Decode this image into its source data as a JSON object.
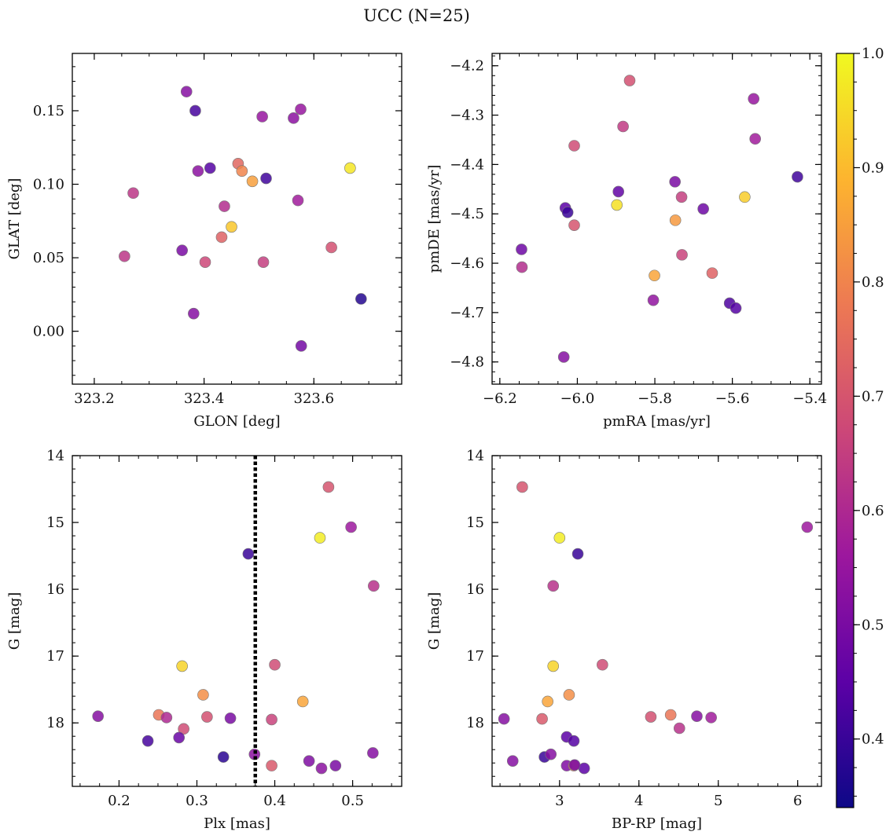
{
  "figure": {
    "title": "UCC (N=25)"
  },
  "colorbar": {
    "range": [
      0.34,
      1.0
    ],
    "ticks": [
      0.4,
      0.5,
      0.6,
      0.7,
      0.8,
      0.9,
      1.0
    ],
    "tick_labels": [
      "0.4",
      "0.5",
      "0.6",
      "0.7",
      "0.8",
      "0.9",
      "1.0"
    ],
    "colormap": "plasma",
    "colors": [
      "#0d0887",
      "#5c01a6",
      "#9c179e",
      "#cc4778",
      "#ed7953",
      "#fdb42f",
      "#f0f921"
    ]
  },
  "chart_data": [
    {
      "id": "glon_glat",
      "type": "scatter",
      "xlabel": "GLON [deg]",
      "ylabel": "GLAT [deg]",
      "xlim": [
        323.16,
        323.76
      ],
      "ylim": [
        -0.036,
        0.189
      ],
      "xticks": [
        323.2,
        323.4,
        323.6
      ],
      "xtick_labels": [
        "323.2",
        "323.4",
        "323.6"
      ],
      "yticks": [
        0.0,
        0.05,
        0.1,
        0.15
      ],
      "ytick_labels": [
        "0.00",
        "0.05",
        "0.10",
        "0.15"
      ],
      "points": [
        {
          "x": 323.368,
          "y": 0.163,
          "c": 0.52
        },
        {
          "x": 323.384,
          "y": 0.15,
          "c": 0.42
        },
        {
          "x": 323.506,
          "y": 0.146,
          "c": 0.55
        },
        {
          "x": 323.563,
          "y": 0.145,
          "c": 0.53
        },
        {
          "x": 323.576,
          "y": 0.151,
          "c": 0.55
        },
        {
          "x": 323.389,
          "y": 0.109,
          "c": 0.53
        },
        {
          "x": 323.411,
          "y": 0.111,
          "c": 0.44
        },
        {
          "x": 323.462,
          "y": 0.114,
          "c": 0.74
        },
        {
          "x": 323.469,
          "y": 0.109,
          "c": 0.8
        },
        {
          "x": 323.488,
          "y": 0.102,
          "c": 0.85
        },
        {
          "x": 323.513,
          "y": 0.104,
          "c": 0.41
        },
        {
          "x": 323.666,
          "y": 0.111,
          "c": 0.97
        },
        {
          "x": 323.271,
          "y": 0.094,
          "c": 0.63
        },
        {
          "x": 323.437,
          "y": 0.085,
          "c": 0.61
        },
        {
          "x": 323.571,
          "y": 0.089,
          "c": 0.57
        },
        {
          "x": 323.45,
          "y": 0.071,
          "c": 0.92
        },
        {
          "x": 323.432,
          "y": 0.064,
          "c": 0.73
        },
        {
          "x": 323.36,
          "y": 0.055,
          "c": 0.5
        },
        {
          "x": 323.255,
          "y": 0.051,
          "c": 0.63
        },
        {
          "x": 323.402,
          "y": 0.047,
          "c": 0.67
        },
        {
          "x": 323.508,
          "y": 0.047,
          "c": 0.65
        },
        {
          "x": 323.632,
          "y": 0.057,
          "c": 0.69
        },
        {
          "x": 323.686,
          "y": 0.022,
          "c": 0.37
        },
        {
          "x": 323.381,
          "y": 0.012,
          "c": 0.52
        },
        {
          "x": 323.577,
          "y": -0.01,
          "c": 0.49
        }
      ]
    },
    {
      "id": "pm",
      "type": "scatter",
      "xlabel": "pmRA [mas/yr]",
      "ylabel": "pmDE [mas/yr]",
      "xlim": [
        -6.22,
        -5.37
      ],
      "ylim": [
        -4.845,
        -4.175
      ],
      "xticks": [
        -6.2,
        -6.0,
        -5.8,
        -5.6,
        -5.4
      ],
      "xtick_labels": [
        "−6.2",
        "−6.0",
        "−5.8",
        "−5.6",
        "−5.4"
      ],
      "yticks": [
        -4.8,
        -4.7,
        -4.6,
        -4.5,
        -4.4,
        -4.3,
        -4.2
      ],
      "ytick_labels": [
        "−4.8",
        "−4.7",
        "−4.6",
        "−4.5",
        "−4.4",
        "−4.3",
        "−4.2"
      ],
      "points": [
        {
          "x": -5.865,
          "y": -4.23,
          "c": 0.69
        },
        {
          "x": -5.545,
          "y": -4.267,
          "c": 0.55
        },
        {
          "x": -5.882,
          "y": -4.323,
          "c": 0.64
        },
        {
          "x": -5.541,
          "y": -4.348,
          "c": 0.57
        },
        {
          "x": -6.008,
          "y": -4.362,
          "c": 0.68
        },
        {
          "x": -5.432,
          "y": -4.425,
          "c": 0.41
        },
        {
          "x": -5.748,
          "y": -4.435,
          "c": 0.5
        },
        {
          "x": -5.894,
          "y": -4.455,
          "c": 0.46
        },
        {
          "x": -5.731,
          "y": -4.466,
          "c": 0.65
        },
        {
          "x": -5.568,
          "y": -4.466,
          "c": 0.93
        },
        {
          "x": -5.898,
          "y": -4.482,
          "c": 0.96
        },
        {
          "x": -6.031,
          "y": -4.488,
          "c": 0.45
        },
        {
          "x": -6.025,
          "y": -4.497,
          "c": 0.4
        },
        {
          "x": -5.675,
          "y": -4.49,
          "c": 0.48
        },
        {
          "x": -6.008,
          "y": -4.523,
          "c": 0.7
        },
        {
          "x": -5.747,
          "y": -4.513,
          "c": 0.84
        },
        {
          "x": -6.144,
          "y": -4.572,
          "c": 0.48
        },
        {
          "x": -5.73,
          "y": -4.583,
          "c": 0.66
        },
        {
          "x": -6.143,
          "y": -4.608,
          "c": 0.61
        },
        {
          "x": -5.801,
          "y": -4.625,
          "c": 0.86
        },
        {
          "x": -5.652,
          "y": -4.62,
          "c": 0.73
        },
        {
          "x": -5.804,
          "y": -4.675,
          "c": 0.54
        },
        {
          "x": -5.607,
          "y": -4.681,
          "c": 0.43
        },
        {
          "x": -5.591,
          "y": -4.691,
          "c": 0.44
        },
        {
          "x": -6.035,
          "y": -4.79,
          "c": 0.52
        }
      ]
    },
    {
      "id": "cmd_plx",
      "type": "scatter",
      "xlabel": "Plx [mas]",
      "ylabel": "G [mag]",
      "xlim": [
        0.14,
        0.563
      ],
      "ylim": [
        18.95,
        14.0
      ],
      "xticks": [
        0.2,
        0.3,
        0.4,
        0.5
      ],
      "xtick_labels": [
        "0.2",
        "0.3",
        "0.4",
        "0.5"
      ],
      "yticks": [
        14,
        15,
        16,
        17,
        18
      ],
      "ytick_labels": [
        "14",
        "15",
        "16",
        "17",
        "18"
      ],
      "vline": {
        "x": 0.375,
        "style": "dotted"
      },
      "points": [
        {
          "x": 0.469,
          "y": 14.47,
          "c": 0.7
        },
        {
          "x": 0.498,
          "y": 15.07,
          "c": 0.56
        },
        {
          "x": 0.458,
          "y": 15.23,
          "c": 0.98
        },
        {
          "x": 0.366,
          "y": 15.47,
          "c": 0.4
        },
        {
          "x": 0.527,
          "y": 15.95,
          "c": 0.62
        },
        {
          "x": 0.281,
          "y": 17.15,
          "c": 0.94
        },
        {
          "x": 0.4,
          "y": 17.13,
          "c": 0.68
        },
        {
          "x": 0.308,
          "y": 17.58,
          "c": 0.82
        },
        {
          "x": 0.436,
          "y": 17.68,
          "c": 0.86
        },
        {
          "x": 0.173,
          "y": 17.9,
          "c": 0.52
        },
        {
          "x": 0.251,
          "y": 17.88,
          "c": 0.77
        },
        {
          "x": 0.261,
          "y": 17.92,
          "c": 0.6
        },
        {
          "x": 0.313,
          "y": 17.91,
          "c": 0.69
        },
        {
          "x": 0.343,
          "y": 17.93,
          "c": 0.5
        },
        {
          "x": 0.396,
          "y": 17.95,
          "c": 0.66
        },
        {
          "x": 0.283,
          "y": 18.09,
          "c": 0.68
        },
        {
          "x": 0.237,
          "y": 18.27,
          "c": 0.42
        },
        {
          "x": 0.277,
          "y": 18.22,
          "c": 0.47
        },
        {
          "x": 0.334,
          "y": 18.51,
          "c": 0.38
        },
        {
          "x": 0.374,
          "y": 18.47,
          "c": 0.53
        },
        {
          "x": 0.526,
          "y": 18.45,
          "c": 0.52
        },
        {
          "x": 0.444,
          "y": 18.57,
          "c": 0.51
        },
        {
          "x": 0.396,
          "y": 18.64,
          "c": 0.71
        },
        {
          "x": 0.46,
          "y": 18.68,
          "c": 0.53
        },
        {
          "x": 0.478,
          "y": 18.64,
          "c": 0.5
        }
      ]
    },
    {
      "id": "cmd_color",
      "type": "scatter",
      "xlabel": "BP-RP [mag]",
      "ylabel": "G [mag]",
      "xlim": [
        2.15,
        6.3
      ],
      "ylim": [
        18.95,
        14.0
      ],
      "xticks": [
        3,
        4,
        5,
        6
      ],
      "xtick_labels": [
        "3",
        "4",
        "5",
        "6"
      ],
      "yticks": [
        14,
        15,
        16,
        17,
        18
      ],
      "ytick_labels": [
        "14",
        "15",
        "16",
        "17",
        "18"
      ],
      "points": [
        {
          "x": 2.53,
          "y": 14.47,
          "c": 0.7
        },
        {
          "x": 6.12,
          "y": 15.07,
          "c": 0.56
        },
        {
          "x": 3.0,
          "y": 15.23,
          "c": 0.98
        },
        {
          "x": 3.23,
          "y": 15.47,
          "c": 0.4
        },
        {
          "x": 2.92,
          "y": 15.95,
          "c": 0.62
        },
        {
          "x": 2.92,
          "y": 17.15,
          "c": 0.94
        },
        {
          "x": 3.54,
          "y": 17.13,
          "c": 0.68
        },
        {
          "x": 3.12,
          "y": 17.58,
          "c": 0.82
        },
        {
          "x": 2.85,
          "y": 17.68,
          "c": 0.86
        },
        {
          "x": 2.3,
          "y": 17.94,
          "c": 0.52
        },
        {
          "x": 2.78,
          "y": 17.94,
          "c": 0.71
        },
        {
          "x": 4.15,
          "y": 17.91,
          "c": 0.69
        },
        {
          "x": 4.4,
          "y": 17.88,
          "c": 0.77
        },
        {
          "x": 4.73,
          "y": 17.9,
          "c": 0.52
        },
        {
          "x": 4.91,
          "y": 17.92,
          "c": 0.57
        },
        {
          "x": 4.51,
          "y": 18.08,
          "c": 0.62
        },
        {
          "x": 3.09,
          "y": 18.21,
          "c": 0.45
        },
        {
          "x": 3.18,
          "y": 18.27,
          "c": 0.44
        },
        {
          "x": 2.81,
          "y": 18.51,
          "c": 0.4
        },
        {
          "x": 2.89,
          "y": 18.47,
          "c": 0.52
        },
        {
          "x": 2.41,
          "y": 18.57,
          "c": 0.52
        },
        {
          "x": 3.09,
          "y": 18.64,
          "c": 0.51
        },
        {
          "x": 3.18,
          "y": 18.64,
          "c": 0.75
        },
        {
          "x": 3.31,
          "y": 18.68,
          "c": 0.45
        },
        {
          "x": 3.19,
          "y": 18.63,
          "c": 0.5
        }
      ]
    }
  ]
}
